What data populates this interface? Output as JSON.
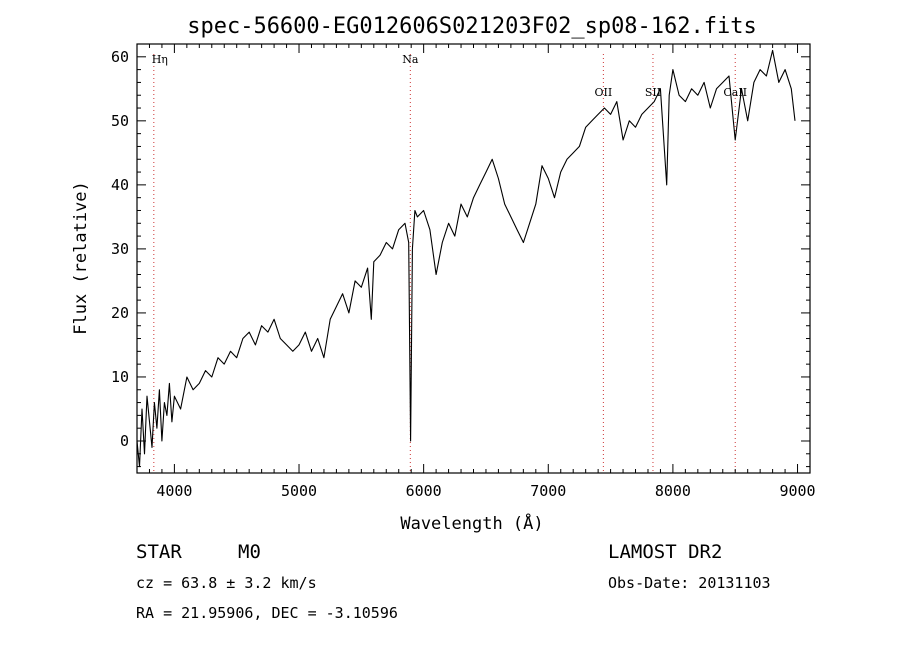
{
  "chart_data": {
    "type": "line",
    "title": "spec-56600-EG012606S021203F02_sp08-162.fits",
    "xlabel": "Wavelength (Å)",
    "ylabel": "Flux (relative)",
    "xlim": [
      3700,
      9100
    ],
    "ylim": [
      -5,
      62
    ],
    "xticks": [
      "4000",
      "5000",
      "6000",
      "7000",
      "8000",
      "9000"
    ],
    "yticks": [
      "0",
      "10",
      "20",
      "30",
      "40",
      "50",
      "60"
    ],
    "xtick_values": [
      4000,
      5000,
      6000,
      7000,
      8000,
      9000
    ],
    "ytick_values": [
      0,
      10,
      20,
      30,
      40,
      50,
      60
    ],
    "grid": false,
    "line_color": "#000000",
    "marker_color": "#cc3333",
    "spectral_lines": [
      {
        "label": "Hη",
        "x": 3835
      },
      {
        "label": "Na",
        "x": 5893
      },
      {
        "label": "OII",
        "x": 7442
      },
      {
        "label": "SII",
        "x": 7840
      },
      {
        "label": "CaII",
        "x": 8500
      }
    ],
    "series": [
      {
        "x": [
          3700,
          3720,
          3740,
          3760,
          3780,
          3800,
          3820,
          3840,
          3860,
          3880,
          3900,
          3920,
          3940,
          3960,
          3980,
          4000,
          4050,
          4100,
          4150,
          4200,
          4250,
          4300,
          4350,
          4400,
          4450,
          4500,
          4550,
          4600,
          4650,
          4700,
          4750,
          4800,
          4850,
          4900,
          4950,
          5000,
          5050,
          5100,
          5150,
          5200,
          5250,
          5300,
          5350,
          5400,
          5450,
          5500,
          5550,
          5580,
          5600,
          5650,
          5700,
          5750,
          5800,
          5850,
          5880,
          5895,
          5910,
          5930,
          5950,
          6000,
          6050,
          6100,
          6150,
          6200,
          6250,
          6300,
          6350,
          6400,
          6450,
          6500,
          6550,
          6600,
          6650,
          6700,
          6750,
          6800,
          6850,
          6900,
          6950,
          7000,
          7050,
          7100,
          7150,
          7200,
          7250,
          7300,
          7350,
          7400,
          7450,
          7500,
          7550,
          7600,
          7650,
          7700,
          7750,
          7800,
          7850,
          7900,
          7950,
          7970,
          8000,
          8050,
          8100,
          8150,
          8200,
          8250,
          8300,
          8350,
          8400,
          8450,
          8500,
          8550,
          8600,
          8650,
          8700,
          8750,
          8800,
          8850,
          8900,
          8950,
          8980
        ],
        "y": [
          0,
          -4,
          5,
          -2,
          7,
          3,
          -1,
          6,
          2,
          8,
          0,
          6,
          4,
          9,
          3,
          7,
          5,
          10,
          8,
          9,
          11,
          10,
          13,
          12,
          14,
          13,
          16,
          17,
          15,
          18,
          17,
          19,
          16,
          15,
          14,
          15,
          17,
          14,
          16,
          13,
          19,
          21,
          23,
          20,
          25,
          24,
          27,
          19,
          28,
          29,
          31,
          30,
          33,
          34,
          31,
          0,
          30,
          36,
          35,
          36,
          33,
          26,
          31,
          34,
          32,
          37,
          35,
          38,
          40,
          42,
          44,
          41,
          37,
          35,
          33,
          31,
          34,
          37,
          43,
          41,
          38,
          42,
          44,
          45,
          46,
          49,
          50,
          51,
          52,
          51,
          53,
          47,
          50,
          49,
          51,
          52,
          53,
          55,
          40,
          54,
          58,
          54,
          53,
          55,
          54,
          56,
          52,
          55,
          56,
          57,
          47,
          55,
          50,
          56,
          58,
          57,
          61,
          56,
          58,
          55,
          50
        ]
      }
    ]
  },
  "info": {
    "object_class": "STAR",
    "subclass": "M0",
    "survey": "LAMOST DR2",
    "redshift": "cz = 63.8 ± 3.2 km/s",
    "obs_date": "Obs-Date: 20131103",
    "coordinates": "RA =  21.95906, DEC =  -3.10596"
  }
}
